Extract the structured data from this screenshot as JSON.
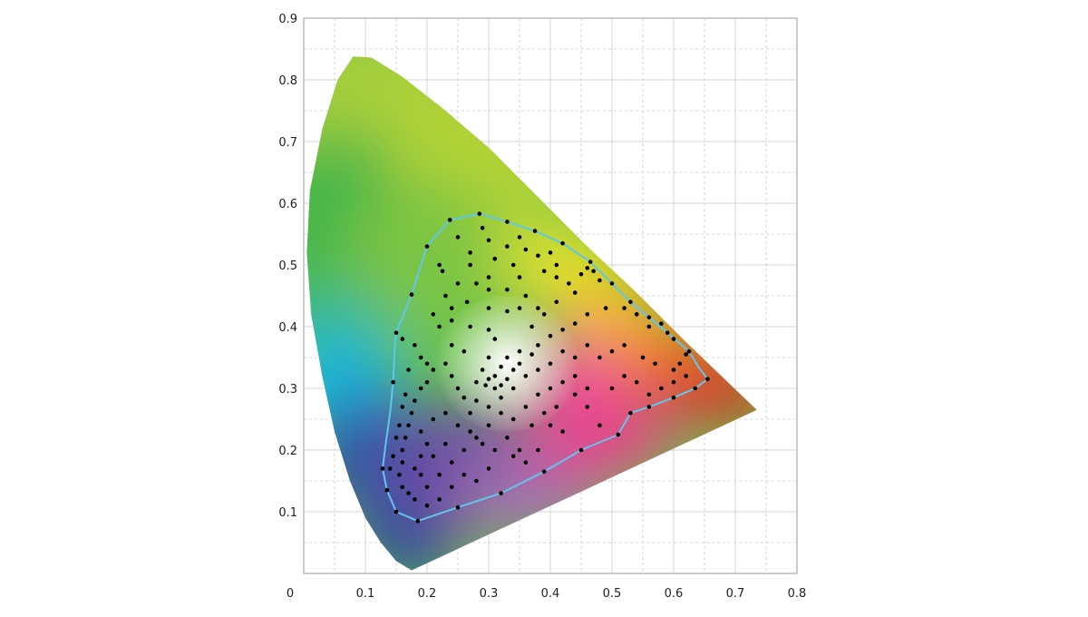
{
  "chart_data": {
    "type": "scatter",
    "title": "",
    "xlabel": "",
    "ylabel": "",
    "xlim": [
      0,
      0.8
    ],
    "ylim": [
      0,
      0.9
    ],
    "x_ticks": [
      "0",
      "0.1",
      "0.2",
      "0.3",
      "0.4",
      "0.5",
      "0.6",
      "0.7",
      "0.8"
    ],
    "y_ticks": [
      "0.1",
      "0.2",
      "0.3",
      "0.4",
      "0.5",
      "0.6",
      "0.7",
      "0.8",
      "0.9"
    ],
    "grid": true,
    "background": "CIE 1931 chromaticity diagram",
    "spectral_locus": [
      [
        0.175,
        0.005
      ],
      [
        0.15,
        0.02
      ],
      [
        0.125,
        0.05
      ],
      [
        0.1,
        0.09
      ],
      [
        0.075,
        0.15
      ],
      [
        0.05,
        0.23
      ],
      [
        0.03,
        0.32
      ],
      [
        0.012,
        0.42
      ],
      [
        0.005,
        0.52
      ],
      [
        0.01,
        0.62
      ],
      [
        0.03,
        0.72
      ],
      [
        0.055,
        0.8
      ],
      [
        0.08,
        0.838
      ],
      [
        0.11,
        0.836
      ],
      [
        0.16,
        0.805
      ],
      [
        0.23,
        0.75
      ],
      [
        0.3,
        0.69
      ],
      [
        0.38,
        0.61
      ],
      [
        0.46,
        0.53
      ],
      [
        0.54,
        0.455
      ],
      [
        0.62,
        0.375
      ],
      [
        0.69,
        0.308
      ],
      [
        0.735,
        0.265
      ]
    ],
    "gamut_outline": [
      [
        0.285,
        0.583
      ],
      [
        0.33,
        0.57
      ],
      [
        0.375,
        0.555
      ],
      [
        0.42,
        0.535
      ],
      [
        0.465,
        0.505
      ],
      [
        0.5,
        0.47
      ],
      [
        0.53,
        0.44
      ],
      [
        0.56,
        0.415
      ],
      [
        0.59,
        0.39
      ],
      [
        0.625,
        0.36
      ],
      [
        0.64,
        0.335
      ],
      [
        0.655,
        0.315
      ],
      [
        0.635,
        0.3
      ],
      [
        0.6,
        0.285
      ],
      [
        0.56,
        0.27
      ],
      [
        0.53,
        0.26
      ],
      [
        0.51,
        0.225
      ],
      [
        0.45,
        0.2
      ],
      [
        0.39,
        0.165
      ],
      [
        0.32,
        0.13
      ],
      [
        0.25,
        0.107
      ],
      [
        0.185,
        0.085
      ],
      [
        0.15,
        0.1
      ],
      [
        0.135,
        0.135
      ],
      [
        0.128,
        0.17
      ],
      [
        0.133,
        0.21
      ],
      [
        0.14,
        0.26
      ],
      [
        0.145,
        0.31
      ],
      [
        0.148,
        0.37
      ],
      [
        0.15,
        0.39
      ],
      [
        0.175,
        0.452
      ],
      [
        0.2,
        0.53
      ],
      [
        0.237,
        0.573
      ]
    ],
    "series": [
      {
        "points": [
          [
            0.285,
            0.583
          ],
          [
            0.237,
            0.573
          ],
          [
            0.2,
            0.53
          ],
          [
            0.175,
            0.452
          ],
          [
            0.15,
            0.39
          ],
          [
            0.33,
            0.57
          ],
          [
            0.375,
            0.555
          ],
          [
            0.42,
            0.535
          ],
          [
            0.465,
            0.505
          ],
          [
            0.5,
            0.47
          ],
          [
            0.53,
            0.44
          ],
          [
            0.56,
            0.415
          ],
          [
            0.59,
            0.39
          ],
          [
            0.625,
            0.36
          ],
          [
            0.655,
            0.315
          ],
          [
            0.635,
            0.3
          ],
          [
            0.6,
            0.285
          ],
          [
            0.56,
            0.27
          ],
          [
            0.53,
            0.26
          ],
          [
            0.51,
            0.225
          ],
          [
            0.45,
            0.2
          ],
          [
            0.39,
            0.165
          ],
          [
            0.32,
            0.13
          ],
          [
            0.25,
            0.107
          ],
          [
            0.185,
            0.085
          ],
          [
            0.15,
            0.1
          ],
          [
            0.135,
            0.135
          ],
          [
            0.128,
            0.17
          ],
          [
            0.145,
            0.31
          ],
          [
            0.29,
            0.56
          ],
          [
            0.25,
            0.545
          ],
          [
            0.3,
            0.54
          ],
          [
            0.33,
            0.53
          ],
          [
            0.36,
            0.525
          ],
          [
            0.27,
            0.52
          ],
          [
            0.31,
            0.51
          ],
          [
            0.34,
            0.5
          ],
          [
            0.38,
            0.515
          ],
          [
            0.4,
            0.52
          ],
          [
            0.22,
            0.5
          ],
          [
            0.225,
            0.49
          ],
          [
            0.3,
            0.48
          ],
          [
            0.25,
            0.47
          ],
          [
            0.35,
            0.48
          ],
          [
            0.39,
            0.49
          ],
          [
            0.41,
            0.48
          ],
          [
            0.43,
            0.47
          ],
          [
            0.45,
            0.485
          ],
          [
            0.46,
            0.495
          ],
          [
            0.47,
            0.49
          ],
          [
            0.48,
            0.475
          ],
          [
            0.44,
            0.455
          ],
          [
            0.41,
            0.44
          ],
          [
            0.38,
            0.43
          ],
          [
            0.35,
            0.43
          ],
          [
            0.33,
            0.425
          ],
          [
            0.3,
            0.43
          ],
          [
            0.265,
            0.44
          ],
          [
            0.23,
            0.45
          ],
          [
            0.21,
            0.42
          ],
          [
            0.22,
            0.4
          ],
          [
            0.24,
            0.41
          ],
          [
            0.27,
            0.4
          ],
          [
            0.3,
            0.395
          ],
          [
            0.31,
            0.38
          ],
          [
            0.33,
            0.35
          ],
          [
            0.32,
            0.335
          ],
          [
            0.31,
            0.32
          ],
          [
            0.3,
            0.315
          ],
          [
            0.295,
            0.305
          ],
          [
            0.31,
            0.3
          ],
          [
            0.32,
            0.305
          ],
          [
            0.33,
            0.315
          ],
          [
            0.34,
            0.33
          ],
          [
            0.35,
            0.34
          ],
          [
            0.37,
            0.355
          ],
          [
            0.38,
            0.37
          ],
          [
            0.4,
            0.385
          ],
          [
            0.42,
            0.395
          ],
          [
            0.44,
            0.405
          ],
          [
            0.46,
            0.42
          ],
          [
            0.49,
            0.43
          ],
          [
            0.52,
            0.43
          ],
          [
            0.54,
            0.42
          ],
          [
            0.56,
            0.4
          ],
          [
            0.58,
            0.405
          ],
          [
            0.6,
            0.38
          ],
          [
            0.62,
            0.355
          ],
          [
            0.61,
            0.34
          ],
          [
            0.6,
            0.33
          ],
          [
            0.57,
            0.34
          ],
          [
            0.55,
            0.35
          ],
          [
            0.52,
            0.37
          ],
          [
            0.5,
            0.36
          ],
          [
            0.48,
            0.35
          ],
          [
            0.46,
            0.37
          ],
          [
            0.44,
            0.35
          ],
          [
            0.42,
            0.36
          ],
          [
            0.4,
            0.34
          ],
          [
            0.38,
            0.33
          ],
          [
            0.36,
            0.32
          ],
          [
            0.34,
            0.3
          ],
          [
            0.32,
            0.285
          ],
          [
            0.3,
            0.27
          ],
          [
            0.28,
            0.28
          ],
          [
            0.26,
            0.285
          ],
          [
            0.25,
            0.3
          ],
          [
            0.24,
            0.32
          ],
          [
            0.23,
            0.34
          ],
          [
            0.21,
            0.33
          ],
          [
            0.2,
            0.31
          ],
          [
            0.19,
            0.3
          ],
          [
            0.18,
            0.28
          ],
          [
            0.175,
            0.26
          ],
          [
            0.17,
            0.24
          ],
          [
            0.165,
            0.22
          ],
          [
            0.16,
            0.2
          ],
          [
            0.16,
            0.18
          ],
          [
            0.155,
            0.16
          ],
          [
            0.16,
            0.14
          ],
          [
            0.17,
            0.13
          ],
          [
            0.18,
            0.12
          ],
          [
            0.2,
            0.14
          ],
          [
            0.22,
            0.16
          ],
          [
            0.24,
            0.18
          ],
          [
            0.26,
            0.2
          ],
          [
            0.28,
            0.22
          ],
          [
            0.3,
            0.24
          ],
          [
            0.32,
            0.26
          ],
          [
            0.34,
            0.25
          ],
          [
            0.36,
            0.27
          ],
          [
            0.38,
            0.29
          ],
          [
            0.4,
            0.3
          ],
          [
            0.42,
            0.31
          ],
          [
            0.44,
            0.29
          ],
          [
            0.46,
            0.27
          ],
          [
            0.48,
            0.24
          ],
          [
            0.5,
            0.3
          ],
          [
            0.52,
            0.32
          ],
          [
            0.54,
            0.31
          ],
          [
            0.56,
            0.29
          ],
          [
            0.58,
            0.3
          ],
          [
            0.6,
            0.31
          ],
          [
            0.62,
            0.32
          ],
          [
            0.4,
            0.24
          ],
          [
            0.42,
            0.23
          ],
          [
            0.38,
            0.2
          ],
          [
            0.36,
            0.18
          ],
          [
            0.34,
            0.19
          ],
          [
            0.3,
            0.17
          ],
          [
            0.28,
            0.15
          ],
          [
            0.26,
            0.16
          ],
          [
            0.24,
            0.14
          ],
          [
            0.22,
            0.12
          ],
          [
            0.2,
            0.11
          ],
          [
            0.19,
            0.23
          ],
          [
            0.21,
            0.25
          ],
          [
            0.23,
            0.26
          ],
          [
            0.25,
            0.24
          ],
          [
            0.27,
            0.26
          ],
          [
            0.19,
            0.19
          ],
          [
            0.2,
            0.21
          ],
          [
            0.18,
            0.17
          ],
          [
            0.19,
            0.16
          ],
          [
            0.21,
            0.19
          ],
          [
            0.23,
            0.21
          ],
          [
            0.17,
            0.33
          ],
          [
            0.16,
            0.38
          ],
          [
            0.18,
            0.37
          ],
          [
            0.19,
            0.35
          ],
          [
            0.2,
            0.34
          ],
          [
            0.28,
            0.31
          ],
          [
            0.29,
            0.33
          ],
          [
            0.3,
            0.35
          ],
          [
            0.26,
            0.36
          ],
          [
            0.24,
            0.37
          ],
          [
            0.14,
            0.17
          ],
          [
            0.145,
            0.19
          ],
          [
            0.15,
            0.22
          ],
          [
            0.155,
            0.24
          ],
          [
            0.16,
            0.27
          ],
          [
            0.165,
            0.29
          ],
          [
            0.35,
            0.2
          ],
          [
            0.33,
            0.22
          ],
          [
            0.31,
            0.2
          ],
          [
            0.29,
            0.21
          ],
          [
            0.27,
            0.23
          ],
          [
            0.44,
            0.32
          ],
          [
            0.46,
            0.3
          ],
          [
            0.41,
            0.27
          ],
          [
            0.39,
            0.26
          ],
          [
            0.37,
            0.24
          ],
          [
            0.35,
            0.36
          ],
          [
            0.37,
            0.4
          ],
          [
            0.39,
            0.42
          ],
          [
            0.36,
            0.45
          ],
          [
            0.33,
            0.46
          ],
          [
            0.3,
            0.46
          ],
          [
            0.28,
            0.47
          ],
          [
            0.24,
            0.43
          ],
          [
            0.27,
            0.5
          ],
          [
            0.35,
            0.545
          ],
          [
            0.41,
            0.5
          ]
        ]
      }
    ],
    "colors": {
      "outline": "#62c5ea",
      "points": "#000000",
      "grid": "#c9c9c9",
      "axis": "#9a9a9a"
    }
  }
}
